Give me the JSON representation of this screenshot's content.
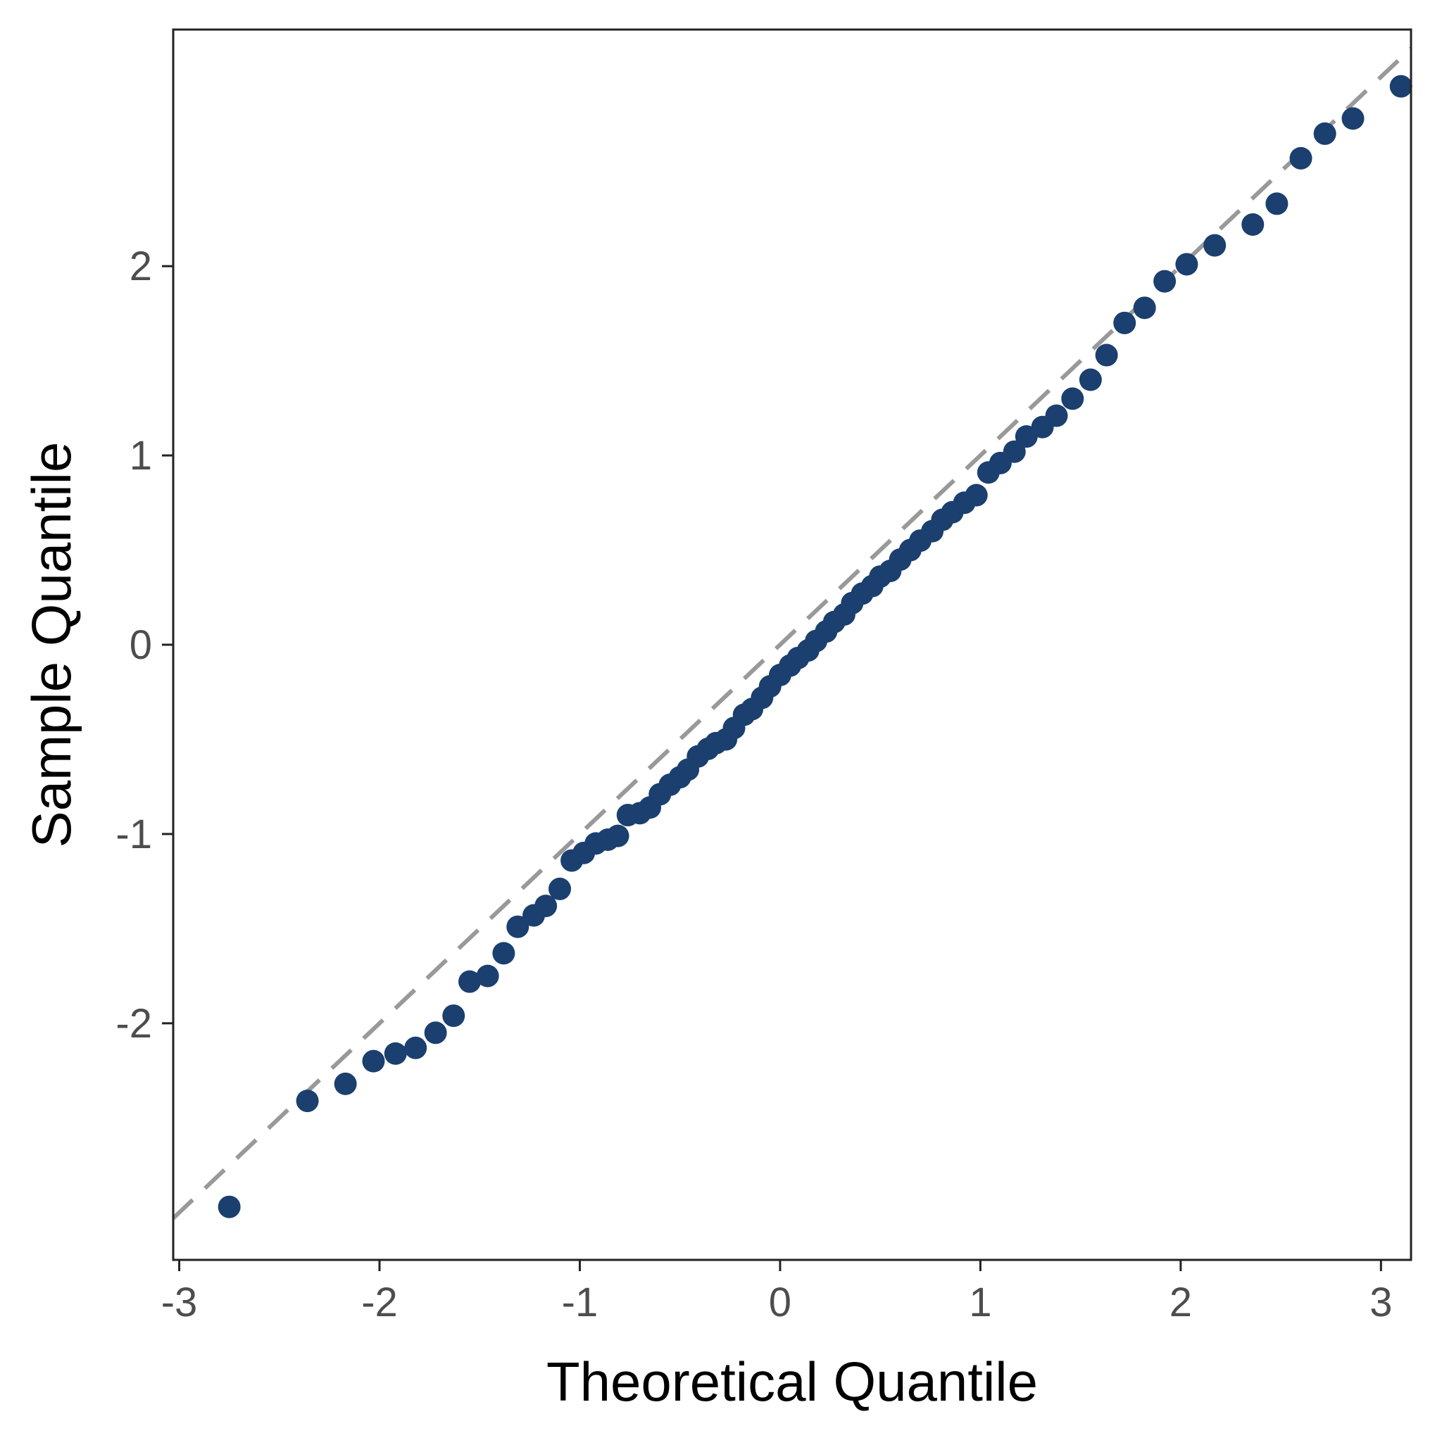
{
  "chart_data": {
    "type": "scatter",
    "title": "",
    "xlabel": "Theoretical Quantile",
    "ylabel": "Sample Quantile",
    "xlim": [
      -3.03,
      3.15
    ],
    "ylim": [
      -3.25,
      3.25
    ],
    "x_ticks": [
      -3,
      -2,
      -1,
      0,
      1,
      2,
      3
    ],
    "x_tick_labels": [
      "-3",
      "-2",
      "-1",
      "0",
      "1",
      "2",
      "3"
    ],
    "y_ticks": [
      -2,
      -1,
      0,
      1,
      2
    ],
    "y_tick_labels": [
      "-2",
      "-1",
      "0",
      "1",
      "2"
    ],
    "grid": false,
    "legend": "none",
    "reference_line": {
      "slope": 1,
      "intercept": 0,
      "style": "dashed",
      "color": "#999999"
    },
    "point_color": "#1b3f6e",
    "series": [
      {
        "points": [
          [
            -2.75,
            -2.97
          ],
          [
            -2.36,
            -2.41
          ],
          [
            -2.17,
            -2.32
          ],
          [
            -2.03,
            -2.2
          ],
          [
            -1.92,
            -2.16
          ],
          [
            -1.82,
            -2.13
          ],
          [
            -1.72,
            -2.05
          ],
          [
            -1.63,
            -1.96
          ],
          [
            -1.55,
            -1.78
          ],
          [
            -1.46,
            -1.75
          ],
          [
            -1.38,
            -1.63
          ],
          [
            -1.31,
            -1.49
          ],
          [
            -1.23,
            -1.43
          ],
          [
            -1.17,
            -1.38
          ],
          [
            -1.1,
            -1.29
          ],
          [
            -1.04,
            -1.14
          ],
          [
            -0.98,
            -1.1
          ],
          [
            -0.92,
            -1.05
          ],
          [
            -0.86,
            -1.03
          ],
          [
            -0.81,
            -1.01
          ],
          [
            -0.76,
            -0.9
          ],
          [
            -0.7,
            -0.89
          ],
          [
            -0.65,
            -0.86
          ],
          [
            -0.6,
            -0.79
          ],
          [
            -0.55,
            -0.74
          ],
          [
            -0.5,
            -0.7
          ],
          [
            -0.46,
            -0.66
          ],
          [
            -0.41,
            -0.59
          ],
          [
            -0.36,
            -0.55
          ],
          [
            -0.32,
            -0.52
          ],
          [
            -0.27,
            -0.5
          ],
          [
            -0.23,
            -0.44
          ],
          [
            -0.18,
            -0.37
          ],
          [
            -0.14,
            -0.34
          ],
          [
            -0.09,
            -0.28
          ],
          [
            -0.05,
            -0.22
          ],
          [
            0.0,
            -0.16
          ],
          [
            0.05,
            -0.11
          ],
          [
            0.09,
            -0.07
          ],
          [
            0.14,
            -0.03
          ],
          [
            0.18,
            0.02
          ],
          [
            0.23,
            0.07
          ],
          [
            0.27,
            0.12
          ],
          [
            0.32,
            0.16
          ],
          [
            0.36,
            0.22
          ],
          [
            0.41,
            0.27
          ],
          [
            0.46,
            0.31
          ],
          [
            0.5,
            0.36
          ],
          [
            0.55,
            0.39
          ],
          [
            0.6,
            0.45
          ],
          [
            0.65,
            0.5
          ],
          [
            0.7,
            0.55
          ],
          [
            0.76,
            0.6
          ],
          [
            0.81,
            0.66
          ],
          [
            0.86,
            0.7
          ],
          [
            0.92,
            0.75
          ],
          [
            0.98,
            0.79
          ],
          [
            1.04,
            0.91
          ],
          [
            1.1,
            0.96
          ],
          [
            1.17,
            1.02
          ],
          [
            1.23,
            1.1
          ],
          [
            1.31,
            1.15
          ],
          [
            1.38,
            1.21
          ],
          [
            1.46,
            1.3
          ],
          [
            1.55,
            1.4
          ],
          [
            1.63,
            1.53
          ],
          [
            1.72,
            1.7
          ],
          [
            1.82,
            1.78
          ],
          [
            1.92,
            1.92
          ],
          [
            2.03,
            2.01
          ],
          [
            2.17,
            2.11
          ],
          [
            2.36,
            2.22
          ],
          [
            2.48,
            2.33
          ],
          [
            2.6,
            2.57
          ],
          [
            2.72,
            2.7
          ],
          [
            2.86,
            2.78
          ],
          [
            3.1,
            2.95
          ]
        ]
      }
    ]
  }
}
